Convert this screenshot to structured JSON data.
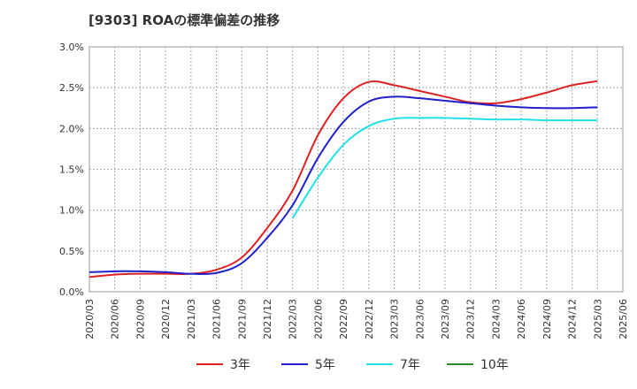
{
  "chart_data": {
    "type": "line",
    "title": "[9303]  ROAの標準偏差の推移",
    "xlabel": "",
    "ylabel": "",
    "ylim": [
      0,
      3.0
    ],
    "grid": true,
    "legend_position": "bottom",
    "x_ticks": [
      "2020/03",
      "2020/06",
      "2020/09",
      "2020/12",
      "2021/03",
      "2021/06",
      "2021/09",
      "2021/12",
      "2022/03",
      "2022/06",
      "2022/09",
      "2022/12",
      "2023/03",
      "2023/06",
      "2023/09",
      "2023/12",
      "2024/03",
      "2024/06",
      "2024/09",
      "2024/12",
      "2025/03",
      "2025/06"
    ],
    "y_ticks": [
      "0.0%",
      "0.5%",
      "1.0%",
      "1.5%",
      "2.0%",
      "2.5%",
      "3.0%"
    ],
    "series": [
      {
        "name": "3年",
        "color": "#dd2222",
        "x": [
          "2020/03",
          "2020/06",
          "2020/09",
          "2020/12",
          "2021/03",
          "2021/06",
          "2021/09",
          "2021/12",
          "2022/03",
          "2022/06",
          "2022/09",
          "2022/12",
          "2023/03",
          "2023/06",
          "2023/09",
          "2023/12",
          "2024/03",
          "2024/06",
          "2024/09",
          "2024/12",
          "2025/03"
        ],
        "values": [
          0.18,
          0.21,
          0.22,
          0.22,
          0.22,
          0.27,
          0.42,
          0.78,
          1.24,
          1.92,
          2.37,
          2.57,
          2.53,
          2.46,
          2.39,
          2.32,
          2.31,
          2.36,
          2.44,
          2.53,
          2.58
        ]
      },
      {
        "name": "5年",
        "color": "#1f1fcc",
        "x": [
          "2020/03",
          "2020/06",
          "2020/09",
          "2020/12",
          "2021/03",
          "2021/06",
          "2021/09",
          "2021/12",
          "2022/03",
          "2022/06",
          "2022/09",
          "2022/12",
          "2023/03",
          "2023/06",
          "2023/09",
          "2023/12",
          "2024/03",
          "2024/06",
          "2024/09",
          "2024/12",
          "2025/03"
        ],
        "values": [
          0.24,
          0.25,
          0.25,
          0.24,
          0.22,
          0.23,
          0.35,
          0.66,
          1.06,
          1.64,
          2.08,
          2.33,
          2.39,
          2.37,
          2.34,
          2.31,
          2.28,
          2.26,
          2.25,
          2.25,
          2.26
        ]
      },
      {
        "name": "7年",
        "color": "#22e0e8",
        "x": [
          "2022/03",
          "2022/06",
          "2022/09",
          "2022/12",
          "2023/03",
          "2023/06",
          "2023/09",
          "2023/12",
          "2024/03",
          "2024/06",
          "2024/09",
          "2024/12",
          "2025/03"
        ],
        "values": [
          0.9,
          1.4,
          1.8,
          2.03,
          2.12,
          2.13,
          2.13,
          2.12,
          2.11,
          2.11,
          2.1,
          2.1,
          2.1
        ]
      },
      {
        "name": "10年",
        "color": "#2a8a2a",
        "x": [],
        "values": []
      }
    ]
  }
}
